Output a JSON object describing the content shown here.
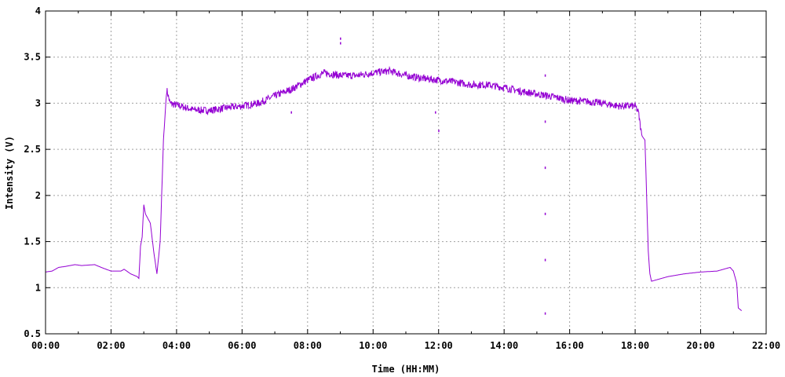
{
  "chart_data": {
    "type": "line",
    "title": "",
    "xlabel": "Time (HH:MM)",
    "ylabel": "Intensity (V)",
    "xlim": [
      0,
      22
    ],
    "ylim": [
      0.5,
      4
    ],
    "grid": true,
    "legend": "none",
    "x_ticks": [
      {
        "value": 0,
        "label": "00:00"
      },
      {
        "value": 2,
        "label": "02:00"
      },
      {
        "value": 4,
        "label": "04:00"
      },
      {
        "value": 6,
        "label": "06:00"
      },
      {
        "value": 8,
        "label": "08:00"
      },
      {
        "value": 10,
        "label": "10:00"
      },
      {
        "value": 12,
        "label": "12:00"
      },
      {
        "value": 14,
        "label": "14:00"
      },
      {
        "value": 16,
        "label": "16:00"
      },
      {
        "value": 18,
        "label": "18:00"
      },
      {
        "value": 20,
        "label": "20:00"
      },
      {
        "value": 22,
        "label": "22:00"
      }
    ],
    "y_ticks": [
      {
        "value": 0.5,
        "label": "0.5"
      },
      {
        "value": 1,
        "label": "1"
      },
      {
        "value": 1.5,
        "label": "1.5"
      },
      {
        "value": 2,
        "label": "2"
      },
      {
        "value": 2.5,
        "label": "2.5"
      },
      {
        "value": 3,
        "label": "3"
      },
      {
        "value": 3.5,
        "label": "3.5"
      },
      {
        "value": 4,
        "label": "4"
      }
    ],
    "series": [
      {
        "name": "intensity",
        "color": "#9400D3",
        "noise_amplitude": 0.04,
        "noisy_range": [
          3.7,
          18.2
        ],
        "x": [
          0,
          0.2,
          0.4,
          0.6,
          0.9,
          1.1,
          1.5,
          1.7,
          2.0,
          2.3,
          2.4,
          2.6,
          2.8,
          2.85,
          2.9,
          2.95,
          3.0,
          3.05,
          3.2,
          3.3,
          3.4,
          3.5,
          3.6,
          3.7,
          3.8,
          4.0,
          4.5,
          5.0,
          5.5,
          6.0,
          6.5,
          7.0,
          7.5,
          8.0,
          8.5,
          9.0,
          9.5,
          10.0,
          10.5,
          11.0,
          11.5,
          12.0,
          12.5,
          13.0,
          13.5,
          14.0,
          14.5,
          15.0,
          15.5,
          16.0,
          16.5,
          17.0,
          17.5,
          18.0,
          18.1,
          18.2,
          18.3,
          18.35,
          18.4,
          18.45,
          18.5,
          18.6,
          19.0,
          19.5,
          20.0,
          20.5,
          20.9,
          21.0,
          21.1,
          21.15,
          21.25
        ],
        "y": [
          1.17,
          1.18,
          1.22,
          1.23,
          1.25,
          1.24,
          1.25,
          1.22,
          1.18,
          1.18,
          1.2,
          1.15,
          1.12,
          1.1,
          1.45,
          1.55,
          1.9,
          1.8,
          1.7,
          1.4,
          1.15,
          1.5,
          2.6,
          3.15,
          3.0,
          2.98,
          2.93,
          2.92,
          2.95,
          2.97,
          3.0,
          3.08,
          3.15,
          3.25,
          3.33,
          3.3,
          3.3,
          3.33,
          3.35,
          3.3,
          3.27,
          3.25,
          3.23,
          3.2,
          3.2,
          3.17,
          3.13,
          3.1,
          3.07,
          3.03,
          3.02,
          3.0,
          2.97,
          2.97,
          2.9,
          2.65,
          2.6,
          2.0,
          1.4,
          1.15,
          1.07,
          1.08,
          1.12,
          1.15,
          1.17,
          1.18,
          1.22,
          1.18,
          1.05,
          0.78,
          0.75
        ]
      }
    ],
    "outliers": [
      {
        "x": 9.0,
        "y": 3.7
      },
      {
        "x": 9.0,
        "y": 3.65
      },
      {
        "x": 15.25,
        "y": 3.3
      },
      {
        "x": 15.25,
        "y": 2.8
      },
      {
        "x": 15.25,
        "y": 2.3
      },
      {
        "x": 15.25,
        "y": 1.8
      },
      {
        "x": 15.25,
        "y": 1.3
      },
      {
        "x": 15.25,
        "y": 0.72
      },
      {
        "x": 7.5,
        "y": 2.9
      },
      {
        "x": 12.0,
        "y": 2.7
      },
      {
        "x": 11.9,
        "y": 2.9
      }
    ]
  }
}
